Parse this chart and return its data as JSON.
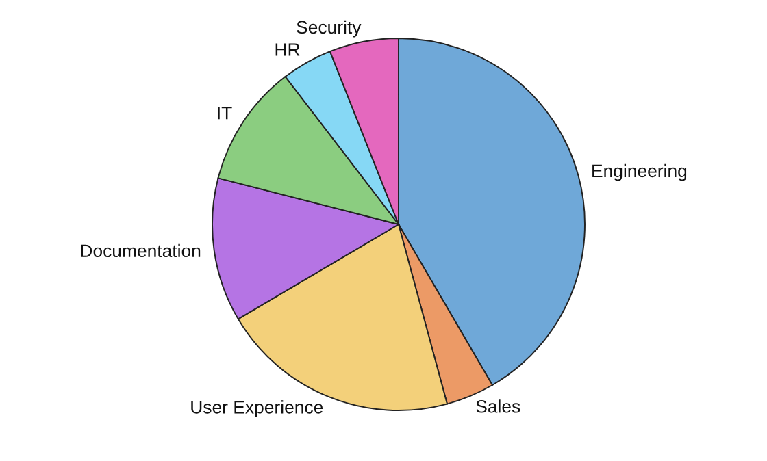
{
  "chart_data": {
    "type": "pie",
    "categories": [
      "Engineering",
      "Sales",
      "User Experience",
      "Documentation",
      "IT",
      "HR",
      "Security"
    ],
    "values": [
      41.6,
      4.2,
      20.7,
      12.5,
      10.6,
      4.4,
      6.0
    ],
    "colors": [
      "#6fa8d8",
      "#ec9a66",
      "#f3d07a",
      "#b574e4",
      "#8bcd80",
      "#86d8f5",
      "#e468be"
    ],
    "legend": false
  }
}
